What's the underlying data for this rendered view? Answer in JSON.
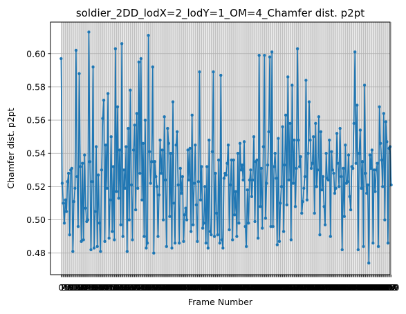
{
  "chart_data": {
    "type": "line",
    "title": "soldier_2DD_lodX=2_lodY=1_OM=4_Chamfer dist. p2pt",
    "xlabel": "Frame Number",
    "ylabel": "Chamfer dist. p2pt",
    "ylim": [
      0.467,
      0.619
    ],
    "xlim": [
      -10,
      309
    ],
    "grid": true,
    "yticks": [
      {
        "value": 0.48,
        "label": "0.48"
      },
      {
        "value": 0.5,
        "label": "0.50"
      },
      {
        "value": 0.52,
        "label": "0.52"
      },
      {
        "value": 0.54,
        "label": "0.54"
      },
      {
        "value": 0.56,
        "label": "0.56"
      },
      {
        "value": 0.58,
        "label": "0.58"
      },
      {
        "value": 0.6,
        "label": "0.60"
      }
    ],
    "x_tick_first": 0,
    "x_tick_last": 299,
    "line_color": "#1f77b4",
    "n_points": 300,
    "series": [
      {
        "name": "",
        "values": [
          0.597,
          0.522,
          0.51,
          0.498,
          0.512,
          0.505,
          0.523,
          0.528,
          0.491,
          0.53,
          0.531,
          0.481,
          0.511,
          0.519,
          0.602,
          0.526,
          0.496,
          0.588,
          0.532,
          0.487,
          0.534,
          0.488,
          0.539,
          0.507,
          0.499,
          0.5,
          0.613,
          0.535,
          0.482,
          0.523,
          0.592,
          0.483,
          0.505,
          0.544,
          0.484,
          0.527,
          0.498,
          0.481,
          0.53,
          0.561,
          0.572,
          0.487,
          0.545,
          0.519,
          0.576,
          0.489,
          0.512,
          0.55,
          0.493,
          0.532,
          0.488,
          0.603,
          0.517,
          0.568,
          0.513,
          0.542,
          0.497,
          0.606,
          0.49,
          0.53,
          0.519,
          0.544,
          0.481,
          0.555,
          0.5,
          0.578,
          0.521,
          0.488,
          0.542,
          0.557,
          0.506,
          0.564,
          0.519,
          0.595,
          0.528,
          0.597,
          0.512,
          0.546,
          0.49,
          0.56,
          0.483,
          0.486,
          0.611,
          0.541,
          0.522,
          0.535,
          0.592,
          0.48,
          0.535,
          0.526,
          0.52,
          0.49,
          0.515,
          0.548,
          0.528,
          0.542,
          0.5,
          0.562,
          0.524,
          0.484,
          0.555,
          0.546,
          0.502,
          0.54,
          0.483,
          0.571,
          0.51,
          0.486,
          0.545,
          0.553,
          0.521,
          0.486,
          0.531,
          0.516,
          0.526,
          0.487,
          0.503,
          0.507,
          0.5,
          0.542,
          0.524,
          0.543,
          0.493,
          0.563,
          0.497,
          0.522,
          0.545,
          0.509,
          0.487,
          0.523,
          0.589,
          0.512,
          0.532,
          0.495,
          0.498,
          0.52,
          0.486,
          0.532,
          0.483,
          0.548,
          0.493,
          0.491,
          0.541,
          0.589,
          0.49,
          0.528,
          0.504,
          0.491,
          0.536,
          0.486,
          0.587,
          0.488,
          0.483,
          0.525,
          0.528,
          0.527,
          0.534,
          0.545,
          0.494,
          0.521,
          0.536,
          0.488,
          0.536,
          0.503,
          0.517,
          0.49,
          0.54,
          0.498,
          0.546,
          0.53,
          0.533,
          0.524,
          0.547,
          0.496,
          0.484,
          0.518,
          0.498,
          0.524,
          0.53,
          0.514,
          0.524,
          0.55,
          0.499,
          0.535,
          0.536,
          0.489,
          0.599,
          0.508,
          0.531,
          0.495,
          0.544,
          0.599,
          0.501,
          0.522,
          0.533,
          0.553,
          0.598,
          0.496,
          0.601,
          0.496,
          0.532,
          0.54,
          0.525,
          0.485,
          0.549,
          0.487,
          0.51,
          0.52,
          0.556,
          0.493,
          0.533,
          0.563,
          0.509,
          0.586,
          0.524,
          0.558,
          0.488,
          0.581,
          0.522,
          0.548,
          0.508,
          0.531,
          0.603,
          0.548,
          0.532,
          0.538,
          0.504,
          0.511,
          0.519,
          0.526,
          0.584,
          0.512,
          0.54,
          0.571,
          0.548,
          0.531,
          0.534,
          0.55,
          0.504,
          0.558,
          0.52,
          0.53,
          0.562,
          0.491,
          0.553,
          0.518,
          0.526,
          0.508,
          0.497,
          0.54,
          0.525,
          0.524,
          0.548,
          0.49,
          0.541,
          0.53,
          0.528,
          0.516,
          0.519,
          0.552,
          0.534,
          0.52,
          0.555,
          0.526,
          0.482,
          0.531,
          0.502,
          0.545,
          0.522,
          0.523,
          0.539,
          0.514,
          0.506,
          0.532,
          0.531,
          0.558,
          0.601,
          0.534,
          0.569,
          0.482,
          0.54,
          0.554,
          0.519,
          0.535,
          0.484,
          0.581,
          0.528,
          0.516,
          0.521,
          0.474,
          0.539,
          0.531,
          0.542,
          0.486,
          0.53,
          0.517,
          0.53,
          0.534,
          0.484,
          0.568,
          0.546,
          0.536,
          0.52,
          0.564,
          0.5,
          0.559,
          0.547,
          0.486,
          0.543,
          0.544,
          0.521
        ]
      }
    ]
  }
}
